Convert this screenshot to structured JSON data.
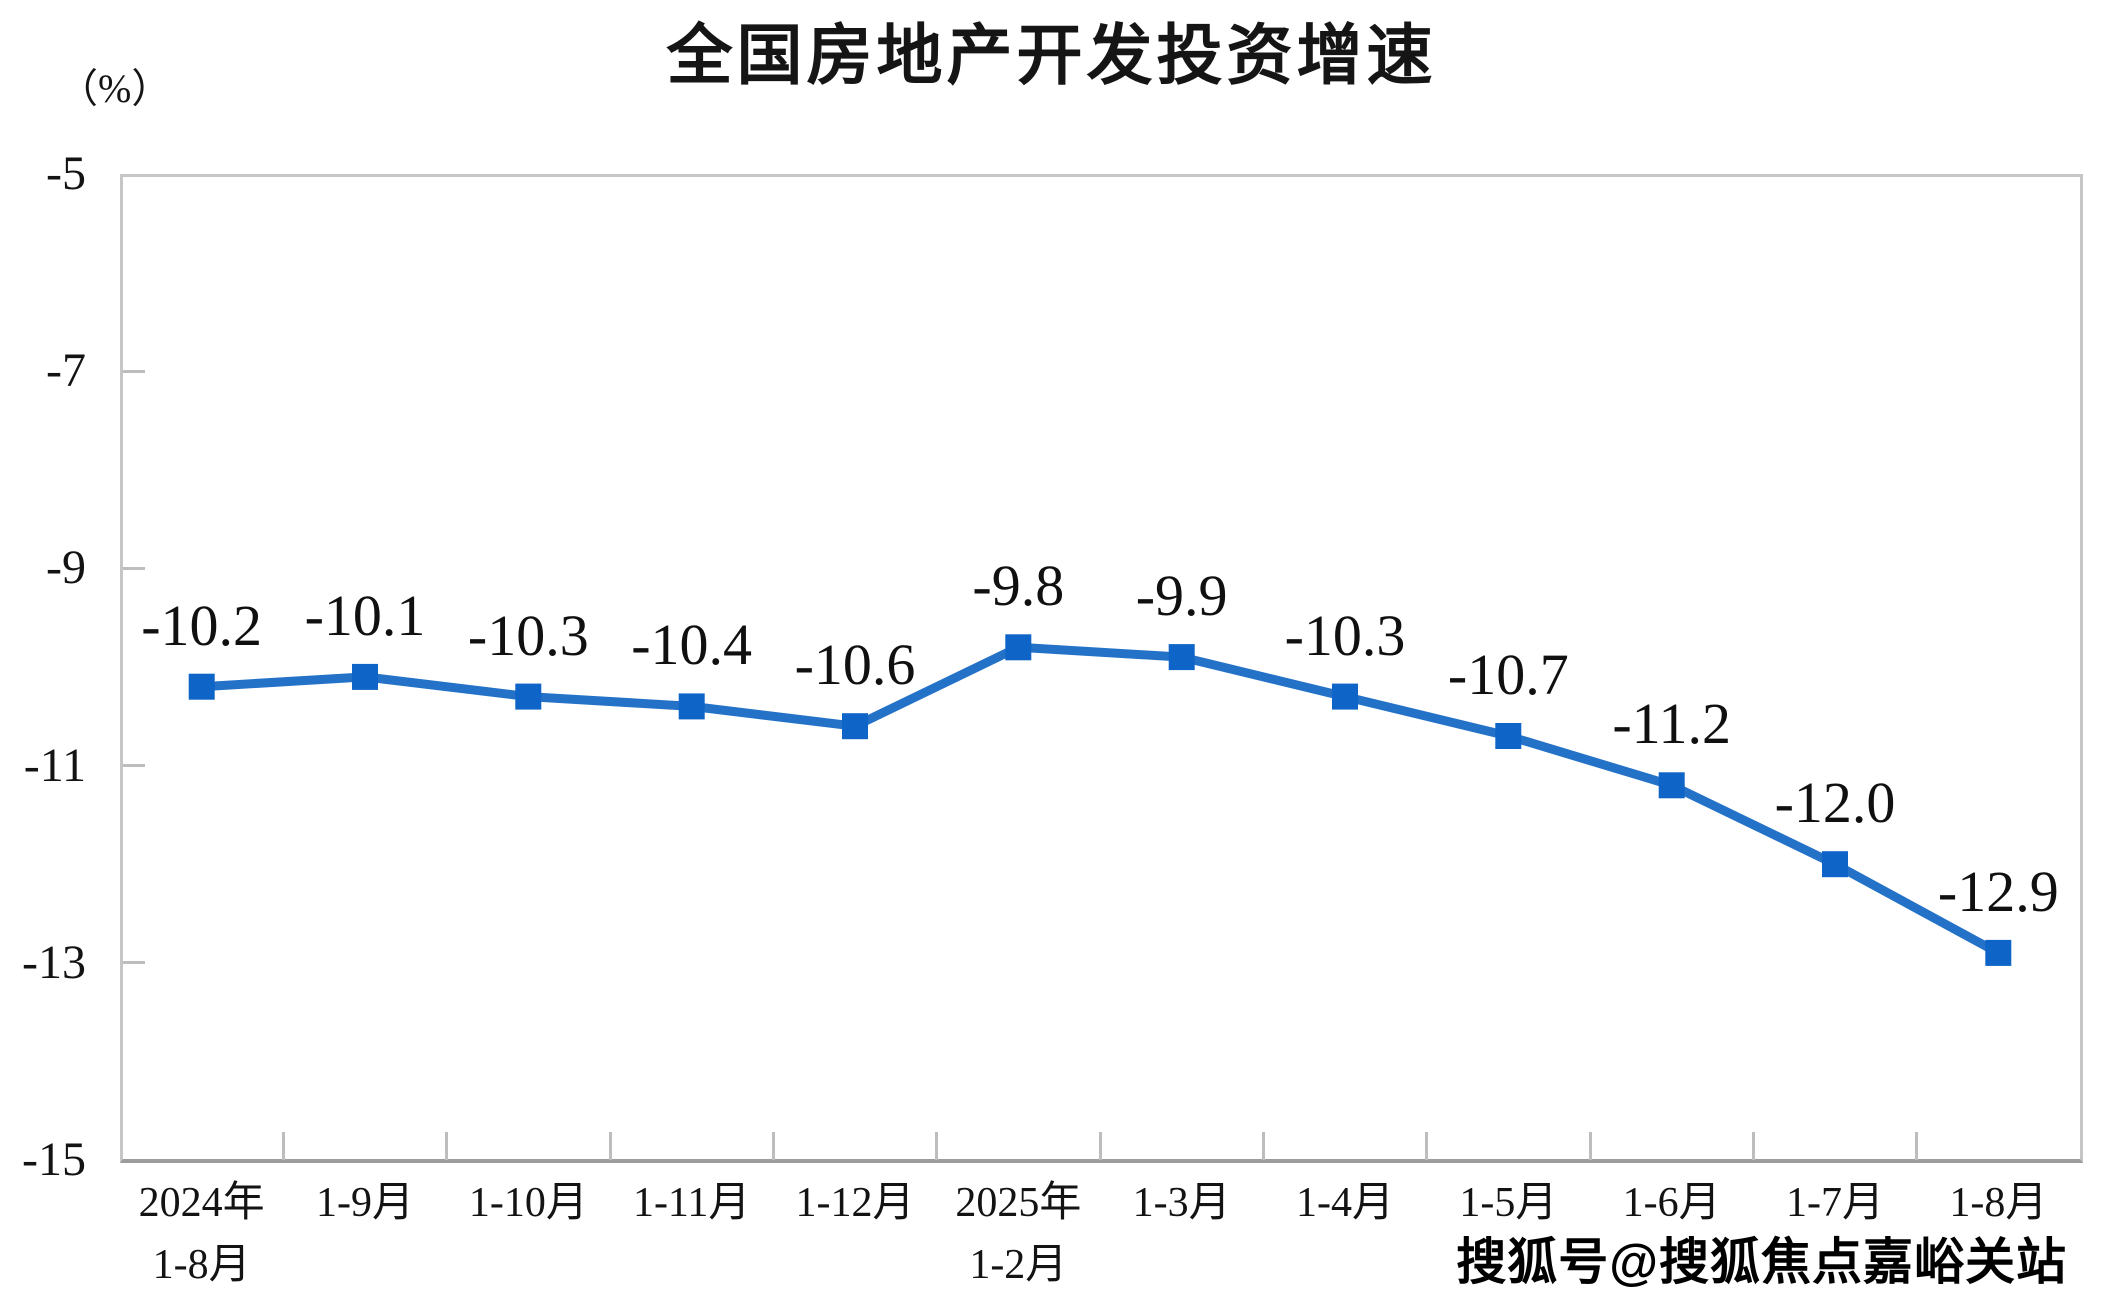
{
  "title": "全国房地产开发投资增速",
  "y_axis_unit": "（%）",
  "watermark": "搜狐号@搜狐焦点嘉峪关站",
  "colors": {
    "line": "#2472c8",
    "marker": "#0f64c8",
    "text": "#111111",
    "frame": "#c6c6c6",
    "axis": "#9c9c9c"
  },
  "chart_data": {
    "type": "line",
    "title": "全国房地产开发投资增速",
    "ylabel": "（%）",
    "categories": [
      [
        "2024年",
        "1-8月"
      ],
      [
        "1-9月"
      ],
      [
        "1-10月"
      ],
      [
        "1-11月"
      ],
      [
        "1-12月"
      ],
      [
        "2025年",
        "1-2月"
      ],
      [
        "1-3月"
      ],
      [
        "1-4月"
      ],
      [
        "1-5月"
      ],
      [
        "1-6月"
      ],
      [
        "1-7月"
      ],
      [
        "1-8月"
      ]
    ],
    "series": [
      {
        "name": "全国房地产开发投资增速",
        "values": [
          -10.2,
          -10.1,
          -10.3,
          -10.4,
          -10.6,
          -9.8,
          -9.9,
          -10.3,
          -10.7,
          -11.2,
          -12.0,
          -12.9
        ]
      }
    ],
    "data_labels": [
      "-10.2",
      "-10.1",
      "-10.3",
      "-10.4",
      "-10.6",
      "-9.8",
      "-9.9",
      "-10.3",
      "-10.7",
      "-11.2",
      "-12.0",
      "-12.9"
    ],
    "ylim": [
      -15,
      -5
    ],
    "yticks": [
      -5,
      -7,
      -9,
      -11,
      -13,
      -15
    ],
    "grid": false,
    "legend_position": "none",
    "marker_shape": "square"
  }
}
